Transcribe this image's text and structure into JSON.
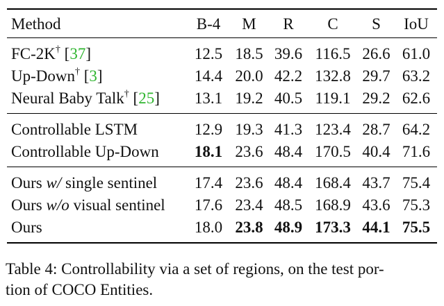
{
  "table": {
    "header": {
      "method": "Method",
      "cols": [
        "B-4",
        "M",
        "R",
        "C",
        "S",
        "IoU"
      ]
    },
    "groups": [
      [
        {
          "pre": "FC-2K",
          "dagger": "†",
          "open": " [",
          "cite": "37",
          "close": "]",
          "post": "",
          "values": [
            "12.5",
            "18.5",
            "39.6",
            "116.5",
            "26.6",
            "61.0"
          ],
          "bold": [
            false,
            false,
            false,
            false,
            false,
            false
          ]
        },
        {
          "pre": "Up-Down",
          "dagger": "†",
          "open": " [",
          "cite": "3",
          "close": "]",
          "post": "",
          "values": [
            "14.4",
            "20.0",
            "42.2",
            "132.8",
            "29.7",
            "63.2"
          ],
          "bold": [
            false,
            false,
            false,
            false,
            false,
            false
          ]
        },
        {
          "pre": "Neural Baby Talk",
          "dagger": "†",
          "open": " [",
          "cite": "25",
          "close": "]",
          "post": "",
          "values": [
            "13.1",
            "19.2",
            "40.5",
            "119.1",
            "29.2",
            "62.6"
          ],
          "bold": [
            false,
            false,
            false,
            false,
            false,
            false
          ]
        }
      ],
      [
        {
          "pre": "Controllable LSTM",
          "dagger": "",
          "open": "",
          "cite": "",
          "close": "",
          "post": "",
          "values": [
            "12.9",
            "19.3",
            "41.3",
            "123.4",
            "28.7",
            "64.2"
          ],
          "bold": [
            false,
            false,
            false,
            false,
            false,
            false
          ]
        },
        {
          "pre": "Controllable Up-Down",
          "dagger": "",
          "open": "",
          "cite": "",
          "close": "",
          "post": "",
          "values": [
            "18.1",
            "23.6",
            "48.4",
            "170.5",
            "40.4",
            "71.6"
          ],
          "bold": [
            true,
            false,
            false,
            false,
            false,
            false
          ]
        }
      ],
      [
        {
          "pre": "Ours ",
          "italic": "w/",
          "post": " single sentinel",
          "dagger": "",
          "open": "",
          "cite": "",
          "close": "",
          "values": [
            "17.4",
            "23.6",
            "48.4",
            "168.4",
            "43.7",
            "75.4"
          ],
          "bold": [
            false,
            false,
            false,
            false,
            false,
            false
          ]
        },
        {
          "pre": "Ours ",
          "italic": "w/o",
          "post": " visual sentinel",
          "dagger": "",
          "open": "",
          "cite": "",
          "close": "",
          "values": [
            "17.6",
            "23.4",
            "48.5",
            "168.9",
            "43.6",
            "75.3"
          ],
          "bold": [
            false,
            false,
            false,
            false,
            false,
            false
          ]
        },
        {
          "pre": "Ours",
          "dagger": "",
          "open": "",
          "cite": "",
          "close": "",
          "post": "",
          "values": [
            "18.0",
            "23.8",
            "48.9",
            "173.3",
            "44.1",
            "75.5"
          ],
          "bold": [
            false,
            true,
            true,
            true,
            true,
            true
          ]
        }
      ]
    ]
  },
  "caption": {
    "line1": "Table 4: Controllability via a set of regions, on the test por-",
    "line2": "tion of COCO Entities."
  }
}
